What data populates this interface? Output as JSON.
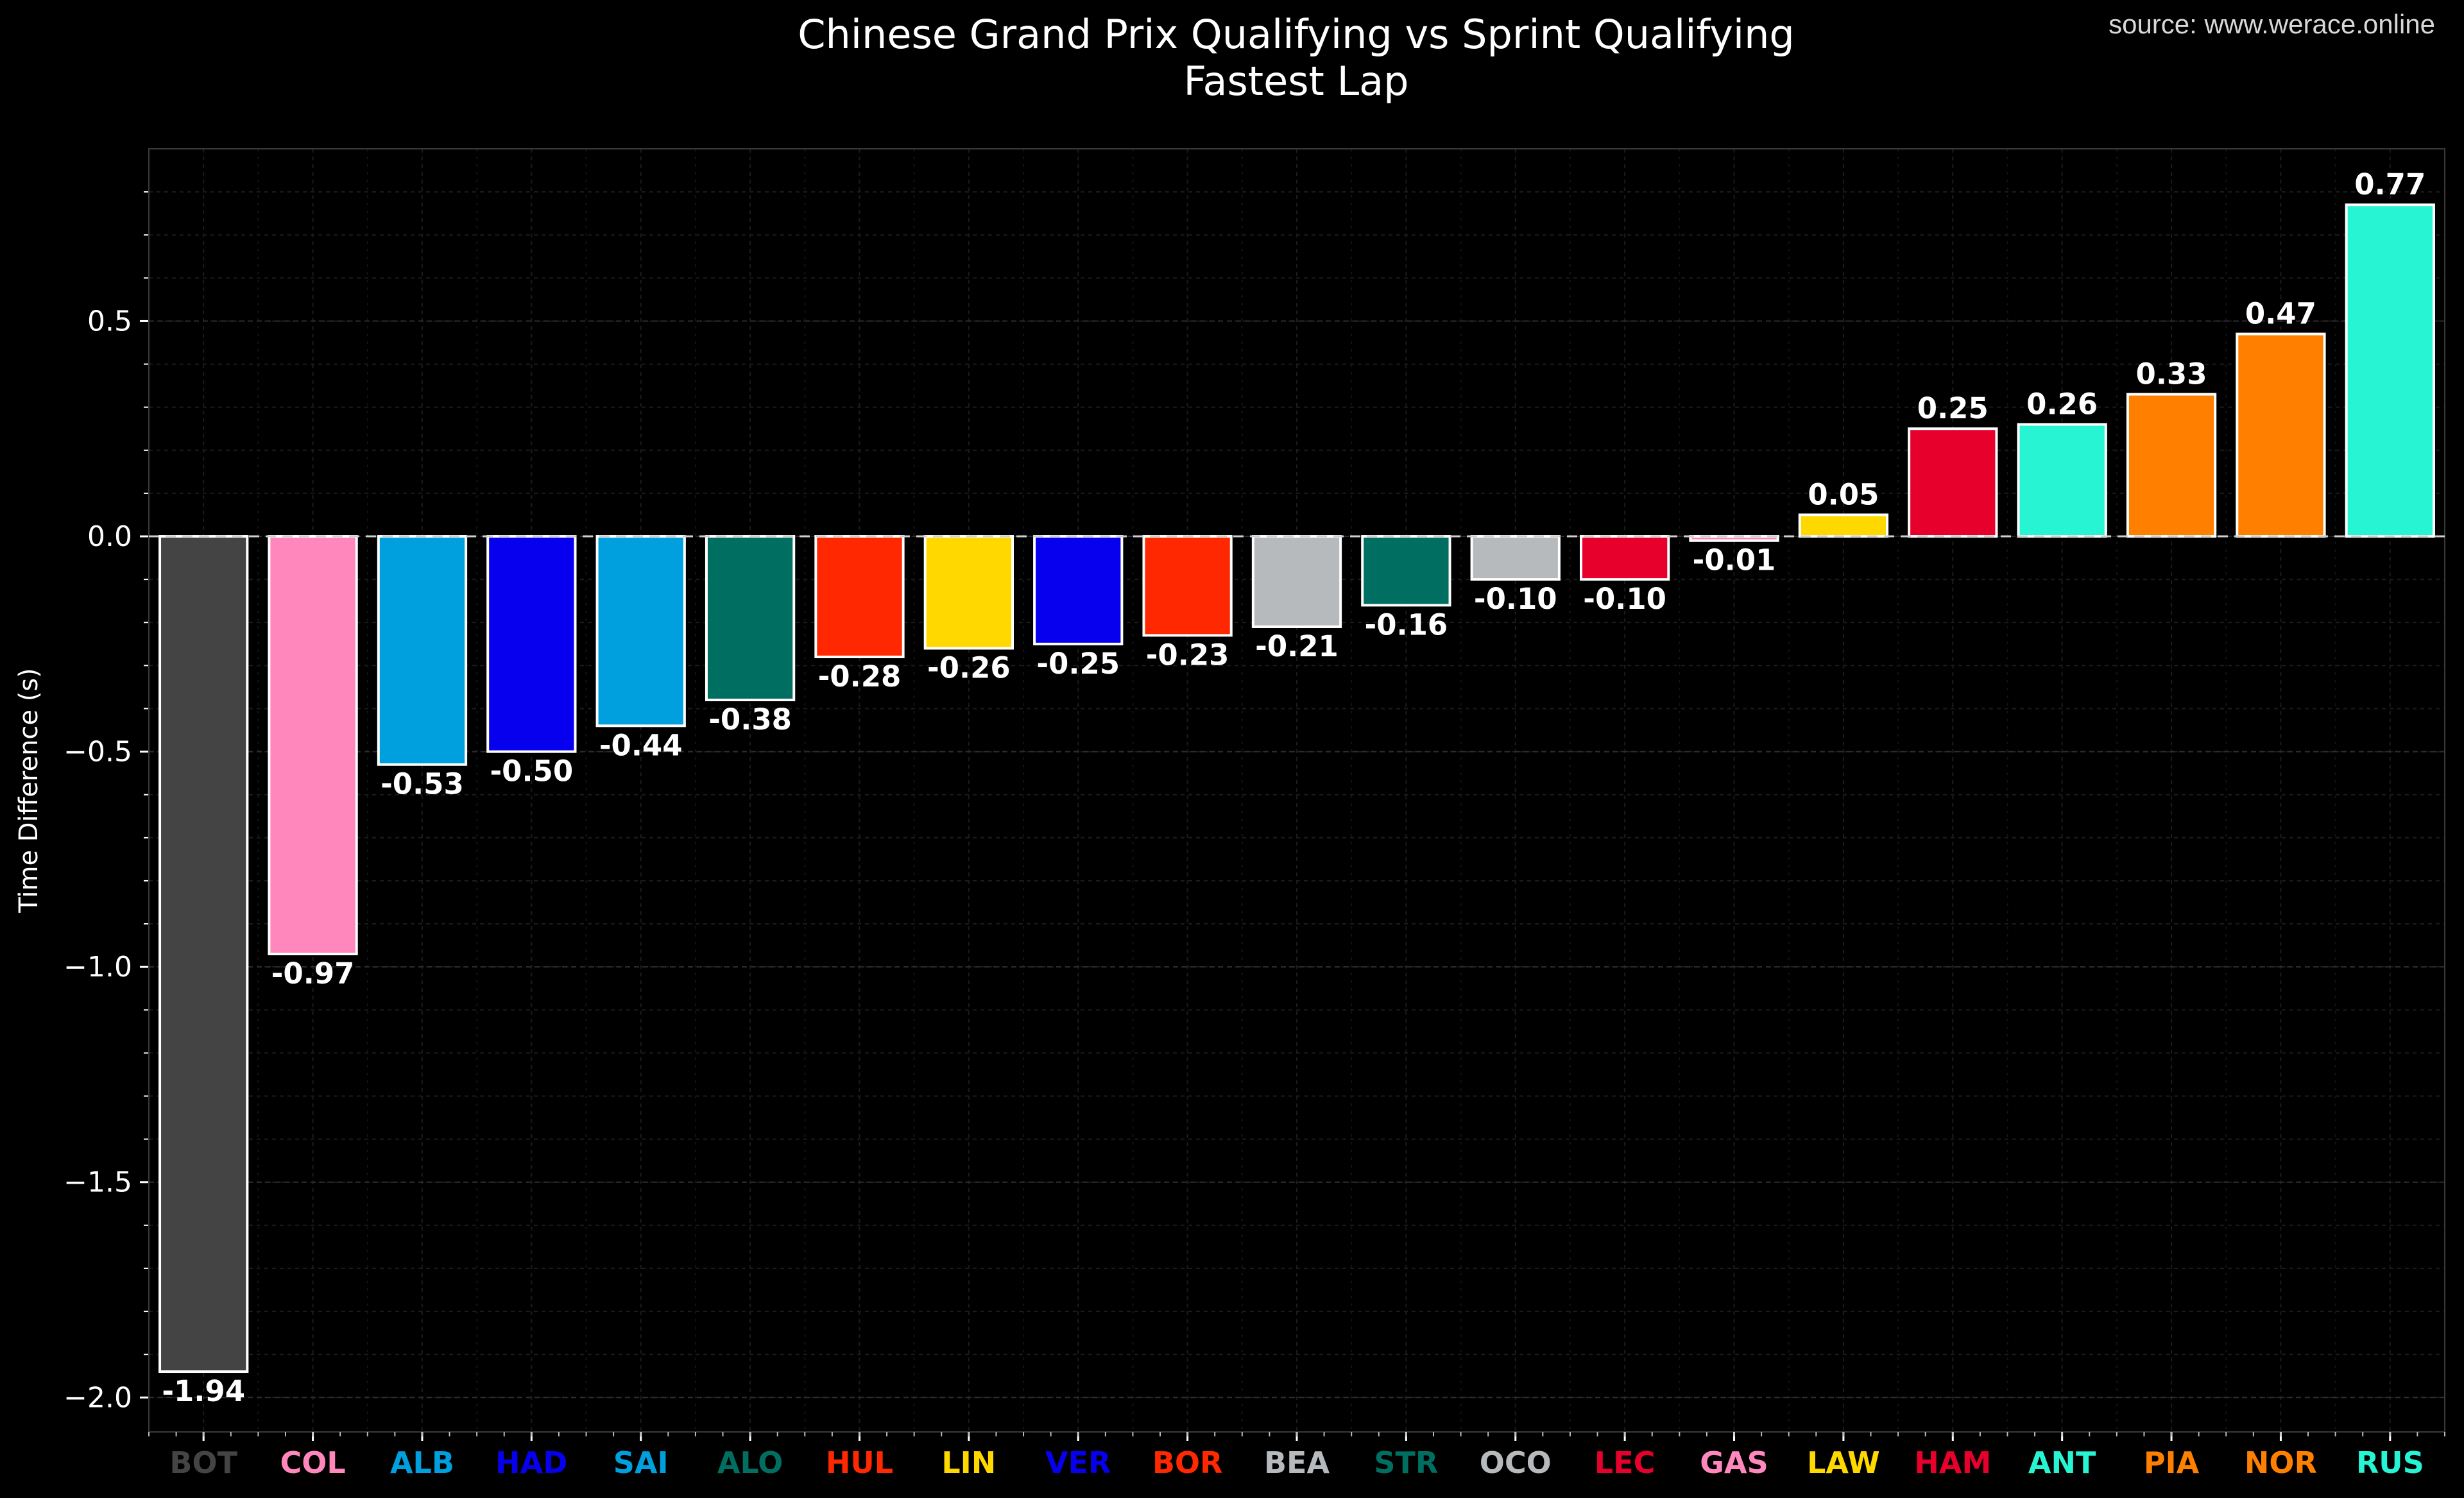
{
  "chart_data": {
    "type": "bar",
    "title": "Chinese Grand Prix Qualifying vs Sprint Qualifying",
    "subtitle": "Fastest Lap",
    "source": "source: www.werace.online",
    "ylabel": "Time Difference (s)",
    "ylim": [
      -2.08,
      0.9
    ],
    "yticks": [
      0.5,
      0.0,
      -0.5,
      -1.0,
      -1.5,
      -2.0
    ],
    "ytick_labels": [
      "0.5",
      "0.0",
      "−0.5",
      "−1.0",
      "−1.5",
      "−2.0"
    ],
    "grid": true,
    "zero_line": "dashed",
    "categories": [
      "BOT",
      "COL",
      "ALB",
      "HAD",
      "SAI",
      "ALO",
      "HUL",
      "LIN",
      "VER",
      "BOR",
      "BEA",
      "STR",
      "OCO",
      "LEC",
      "GAS",
      "LAW",
      "HAM",
      "ANT",
      "PIA",
      "NOR",
      "RUS"
    ],
    "values": [
      -1.94,
      -0.97,
      -0.53,
      -0.5,
      -0.44,
      -0.38,
      -0.28,
      -0.26,
      -0.25,
      -0.23,
      -0.21,
      -0.16,
      -0.1,
      -0.1,
      -0.01,
      0.05,
      0.25,
      0.26,
      0.33,
      0.47,
      0.77
    ],
    "value_labels": [
      "-1.94",
      "-0.97",
      "-0.53",
      "-0.50",
      "-0.44",
      "-0.38",
      "-0.28",
      "-0.26",
      "-0.25",
      "-0.23",
      "-0.21",
      "-0.16",
      "-0.10",
      "-0.10",
      "-0.01",
      "0.05",
      "0.25",
      "0.26",
      "0.33",
      "0.47",
      "0.77"
    ],
    "colors": [
      "#444444",
      "#FF87BC",
      "#00A0DE",
      "#0600EF",
      "#00A0DE",
      "#006F62",
      "#FF2800",
      "#FFD800",
      "#0600EF",
      "#FF2800",
      "#B6BABD",
      "#006F62",
      "#B6BABD",
      "#E8002D",
      "#FF87BC",
      "#FFD800",
      "#E8002D",
      "#27F4D2",
      "#FF8000",
      "#FF8000",
      "#27F4D2"
    ],
    "bar_edge_color": "#ffffff",
    "background_color": "#000000"
  }
}
